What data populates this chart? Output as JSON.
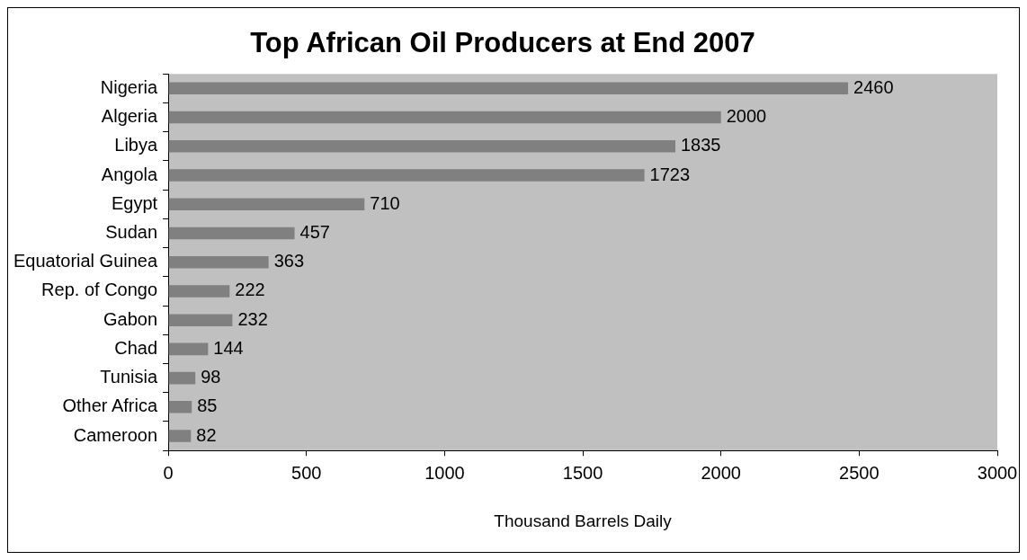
{
  "chart_data": {
    "type": "bar",
    "orientation": "horizontal",
    "title": "Top African Oil Producers at End 2007",
    "xlabel": "Thousand Barrels Daily",
    "categories": [
      "Nigeria",
      "Algeria",
      "Libya",
      "Angola",
      "Egypt",
      "Sudan",
      "Equatorial Guinea",
      "Rep. of Congo",
      "Gabon",
      "Chad",
      "Tunisia",
      "Other Africa",
      "Cameroon"
    ],
    "values": [
      2460,
      2000,
      1835,
      1723,
      710,
      457,
      363,
      222,
      232,
      144,
      98,
      85,
      82
    ],
    "color": "#808080",
    "xlim": [
      0,
      3000
    ],
    "xticks": [
      0,
      500,
      1000,
      1500,
      2000,
      2500,
      3000
    ],
    "grid": false,
    "legend": false,
    "data_labels": true
  }
}
